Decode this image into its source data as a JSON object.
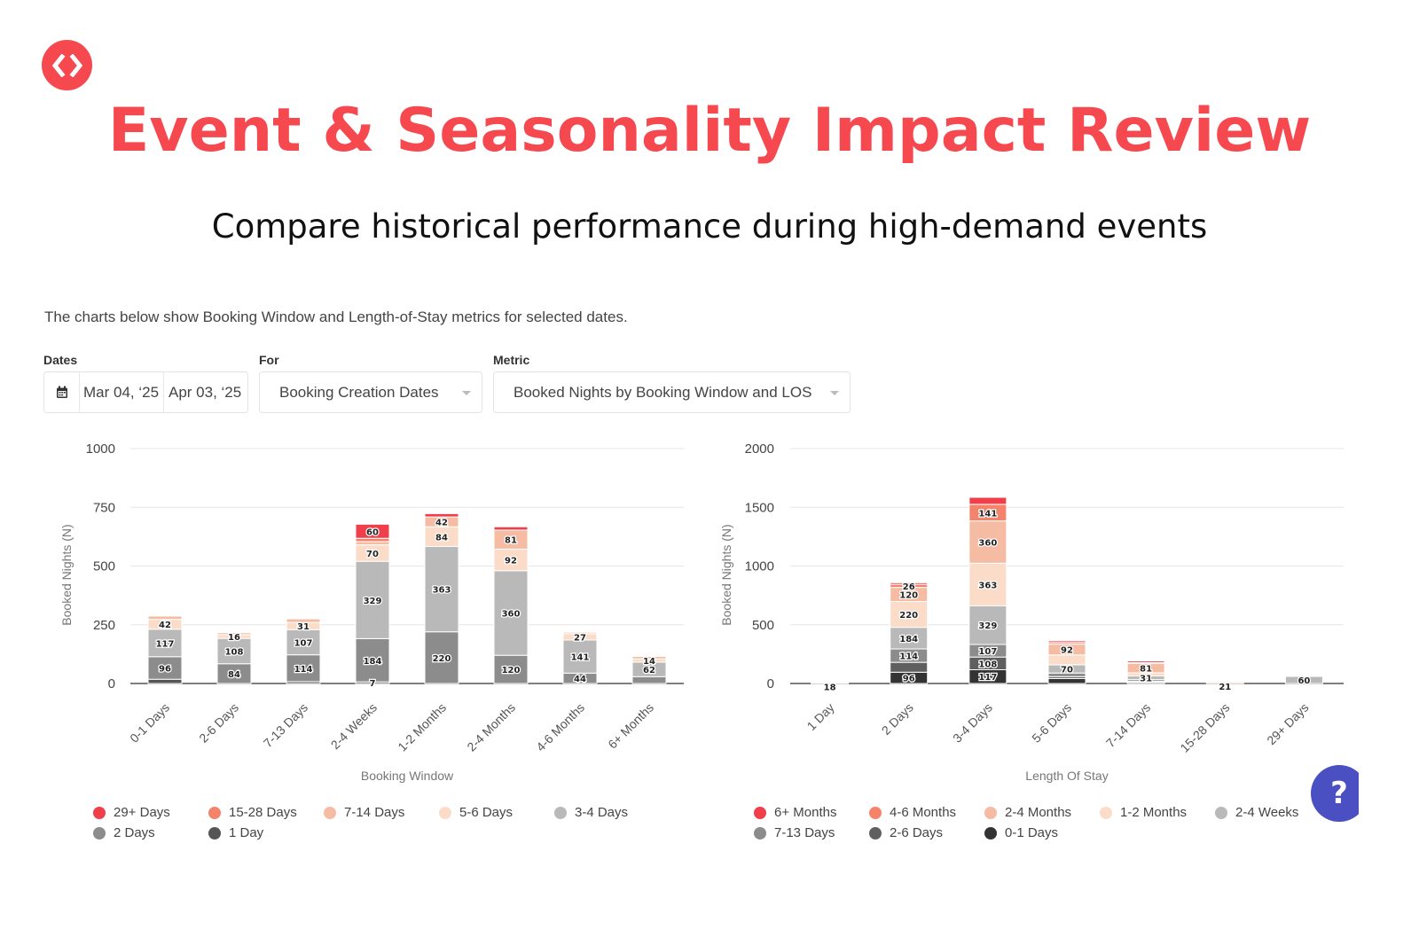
{
  "header": {
    "logo_icon": "code-brackets-icon",
    "title": "Event & Seasonality Impact Review",
    "subtitle": "Compare historical performance during high-demand events"
  },
  "description": "The charts below show Booking Window and Length-of-Stay metrics for selected dates.",
  "filters": {
    "dates": {
      "label": "Dates",
      "icon": "calendar-icon",
      "start": "Mar 04, ‘25",
      "end": "Apr 03, ‘25"
    },
    "for": {
      "label": "For",
      "value": "Booking Creation Dates"
    },
    "metric": {
      "label": "Metric",
      "value": "Booked Nights by Booking Window and LOS"
    }
  },
  "help_button": {
    "icon": "question-icon",
    "label": "?"
  },
  "chart_data": [
    {
      "type": "bar",
      "stacked": true,
      "title": "",
      "xlabel": "Booking Window",
      "ylabel": "Booked Nights (N)",
      "ylim": [
        0,
        1000
      ],
      "yticks": [
        0,
        250,
        500,
        750,
        1000
      ],
      "grid": true,
      "legend": "bottom",
      "categories": [
        "0-1 Days",
        "2-6 Days",
        "7-13 Days",
        "2-4 Weeks",
        "1-2 Months",
        "2-4 Months",
        "4-6 Months",
        "6+ Months"
      ],
      "series": [
        {
          "name": "1 Day",
          "color": "#555555",
          "values": [
            18,
            0,
            8,
            7,
            0,
            0,
            0,
            0
          ]
        },
        {
          "name": "2 Days",
          "color": "#8c8c8c",
          "values": [
            96,
            84,
            114,
            184,
            220,
            120,
            44,
            29
          ]
        },
        {
          "name": "3-4 Days",
          "color": "#b9b9b9",
          "values": [
            117,
            108,
            107,
            329,
            363,
            360,
            141,
            62
          ]
        },
        {
          "name": "5-6 Days",
          "color": "#fbdcc9",
          "values": [
            42,
            16,
            31,
            70,
            84,
            92,
            27,
            14
          ]
        },
        {
          "name": "7-14 Days",
          "color": "#f6bba3",
          "values": [
            14,
            8,
            15,
            14,
            42,
            81,
            6,
            10
          ]
        },
        {
          "name": "15-28 Days",
          "color": "#f4836c",
          "values": [
            0,
            0,
            0,
            14,
            0,
            0,
            0,
            0
          ]
        },
        {
          "name": "29+ Days",
          "color": "#ef3f4a",
          "values": [
            0,
            0,
            0,
            60,
            14,
            14,
            0,
            0
          ]
        }
      ],
      "labeled_values": [
        [
          "96",
          "117",
          "42"
        ],
        [
          "84",
          "108",
          "16"
        ],
        [
          "114",
          "107",
          "31"
        ],
        [
          "7",
          "184",
          "329",
          "70",
          "60"
        ],
        [
          "220",
          "363",
          "84",
          "42"
        ],
        [
          "120",
          "360",
          "92",
          "81"
        ],
        [
          "44",
          "141",
          "27"
        ],
        [
          "62",
          "14"
        ]
      ]
    },
    {
      "type": "bar",
      "stacked": true,
      "title": "",
      "xlabel": "Length Of Stay",
      "ylabel": "Booked Nights (N)",
      "ylim": [
        0,
        2000
      ],
      "yticks": [
        0,
        500,
        1000,
        1500,
        2000
      ],
      "grid": true,
      "legend": "bottom",
      "categories": [
        "1 Day",
        "2 Days",
        "3-4 Days",
        "5-6 Days",
        "7-14 Days",
        "15-28 Days",
        "29+ Days"
      ],
      "series": [
        {
          "name": "0-1 Days",
          "color": "#333333",
          "values": [
            8,
            96,
            117,
            42,
            10,
            0,
            0
          ]
        },
        {
          "name": "2-6 Days",
          "color": "#5f5f5f",
          "values": [
            3,
            84,
            108,
            16,
            8,
            0,
            0
          ]
        },
        {
          "name": "7-13 Days",
          "color": "#8c8c8c",
          "values": [
            7,
            114,
            107,
            31,
            15,
            0,
            0
          ]
        },
        {
          "name": "2-4 Weeks",
          "color": "#b9b9b9",
          "values": [
            0,
            184,
            329,
            70,
            31,
            0,
            60
          ]
        },
        {
          "name": "1-2 Months",
          "color": "#fbdcc9",
          "values": [
            0,
            220,
            363,
            84,
            27,
            14,
            0
          ]
        },
        {
          "name": "2-4 Months",
          "color": "#f6bba3",
          "values": [
            0,
            120,
            360,
            92,
            81,
            7,
            0
          ]
        },
        {
          "name": "4-6 Months",
          "color": "#f4836c",
          "values": [
            0,
            26,
            141,
            14,
            6,
            0,
            0
          ]
        },
        {
          "name": "6+ Months",
          "color": "#ef3f4a",
          "values": [
            0,
            14,
            60,
            14,
            14,
            0,
            0
          ]
        }
      ],
      "labeled_values": [
        [
          "18"
        ],
        [
          "96",
          "114",
          "184",
          "220",
          "120",
          "26"
        ],
        [
          "117",
          "108",
          "107",
          "329",
          "363",
          "360",
          "141"
        ],
        [
          "70",
          "92"
        ],
        [
          "31",
          "81"
        ],
        [
          "21"
        ],
        [
          "60"
        ]
      ]
    }
  ]
}
